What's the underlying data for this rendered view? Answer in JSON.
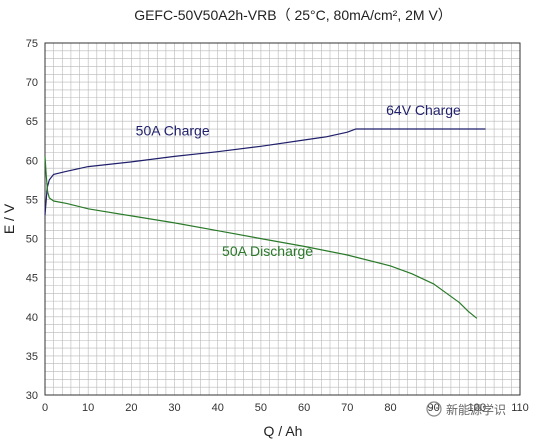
{
  "chart_data": {
    "type": "line",
    "title": "GEFC-50V50A2h-VRB（ 25°C, 80mA/cm², 2M V）",
    "xlabel": "Q / Ah",
    "ylabel": "E / V",
    "xlim": [
      0,
      110
    ],
    "ylim": [
      30,
      75
    ],
    "xticks": [
      0,
      10,
      20,
      30,
      40,
      50,
      60,
      70,
      80,
      90,
      100,
      110
    ],
    "yticks": [
      30,
      35,
      40,
      45,
      50,
      55,
      60,
      65,
      70,
      75
    ],
    "grid": true,
    "series": [
      {
        "name": "50A Charge",
        "color": "#1f1f6b",
        "points": [
          [
            0,
            53
          ],
          [
            0.5,
            56.5
          ],
          [
            1,
            57.5
          ],
          [
            2,
            58.2
          ],
          [
            5,
            58.6
          ],
          [
            10,
            59.2
          ],
          [
            20,
            59.8
          ],
          [
            30,
            60.5
          ],
          [
            40,
            61.1
          ],
          [
            50,
            61.8
          ],
          [
            60,
            62.6
          ],
          [
            65,
            63.0
          ],
          [
            70,
            63.6
          ],
          [
            72,
            64.0
          ],
          [
            74,
            64.0
          ]
        ]
      },
      {
        "name": "64V Charge",
        "color": "#1f1f6b",
        "points": [
          [
            74,
            64.0
          ],
          [
            80,
            64.0
          ],
          [
            90,
            64.0
          ],
          [
            100,
            64.0
          ],
          [
            102,
            64.0
          ]
        ]
      },
      {
        "name": "50A Discharge",
        "color": "#2a7a2a",
        "points": [
          [
            0,
            60.5
          ],
          [
            0.3,
            58
          ],
          [
            0.6,
            56
          ],
          [
            1,
            55.2
          ],
          [
            2,
            54.8
          ],
          [
            5,
            54.5
          ],
          [
            10,
            53.8
          ],
          [
            20,
            52.9
          ],
          [
            30,
            52.0
          ],
          [
            40,
            51.0
          ],
          [
            50,
            50.0
          ],
          [
            60,
            49.0
          ],
          [
            70,
            47.9
          ],
          [
            80,
            46.5
          ],
          [
            85,
            45.5
          ],
          [
            90,
            44.2
          ],
          [
            93,
            43.0
          ],
          [
            96,
            41.8
          ],
          [
            98,
            40.7
          ],
          [
            100,
            39.8
          ]
        ]
      }
    ],
    "annotations": [
      {
        "text": "64V Charge",
        "x": 79,
        "y": 65.8,
        "color": "#1f1f6b"
      },
      {
        "text": "50A Charge",
        "x": 21,
        "y": 63.2,
        "color": "#1f1f6b"
      },
      {
        "text": "50A Discharge",
        "x": 41,
        "y": 47.8,
        "color": "#2a7a2a"
      }
    ],
    "colors": {
      "grid": "#b8b8b8",
      "axis": "#333333"
    }
  },
  "watermark": "新能源学识"
}
